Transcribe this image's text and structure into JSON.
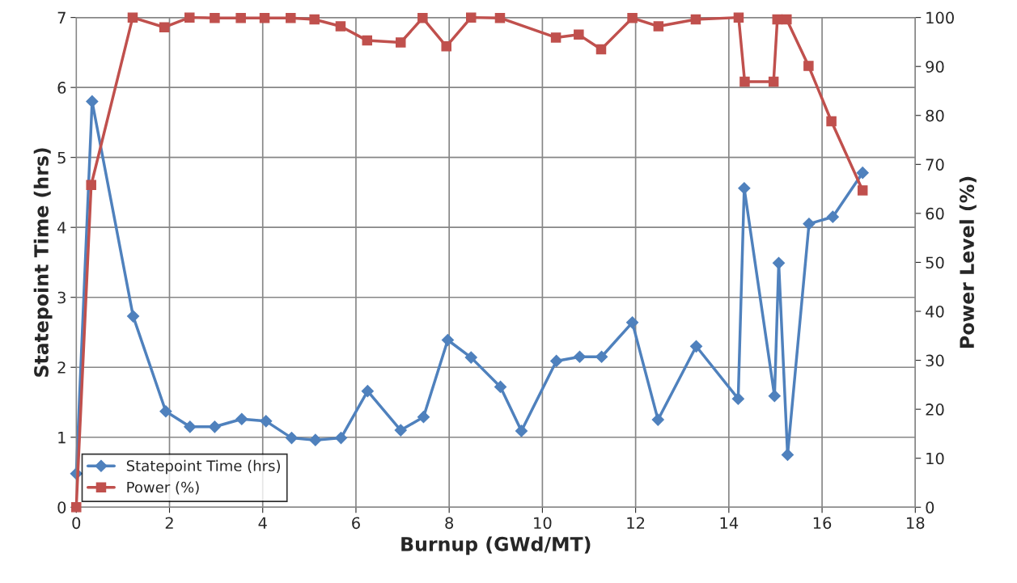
{
  "chart_data": {
    "type": "line",
    "xlabel": "Burnup (GWd/MT)",
    "ylabel": "Statepoint Time (hrs)",
    "y2label": "Power Level (%)",
    "xlim": [
      0,
      18
    ],
    "xticks": [
      0,
      2,
      4,
      6,
      8,
      10,
      12,
      14,
      16,
      18
    ],
    "ylim": [
      0,
      7
    ],
    "yticks": [
      0,
      1,
      2,
      3,
      4,
      5,
      6,
      7
    ],
    "y2lim": [
      0,
      100
    ],
    "y2ticks": [
      0,
      10,
      20,
      30,
      40,
      50,
      60,
      70,
      80,
      90,
      100
    ],
    "grid": true,
    "legend": "bottom left",
    "line_style": "solid",
    "series": [
      {
        "name": "Statepoint Time (hrs)",
        "color": "#4f81bd",
        "marker": "diamond",
        "x": [
          0,
          0.34,
          1.22,
          1.92,
          2.44,
          2.97,
          3.55,
          4.07,
          4.62,
          5.13,
          5.68,
          6.25,
          6.96,
          7.45,
          7.97,
          8.47,
          9.1,
          9.55,
          10.3,
          10.8,
          11.27,
          11.93,
          12.48,
          13.3,
          14.2,
          14.33,
          14.98,
          15.07,
          15.26,
          15.72,
          16.23,
          16.87
        ],
        "values": [
          0.48,
          5.8,
          2.73,
          1.37,
          1.15,
          1.15,
          1.26,
          1.23,
          0.99,
          0.96,
          0.99,
          1.66,
          1.1,
          1.29,
          2.39,
          2.14,
          1.72,
          1.09,
          2.09,
          2.15,
          2.15,
          2.64,
          1.25,
          2.3,
          1.55,
          4.56,
          1.59,
          3.49,
          0.75,
          4.05,
          4.15,
          4.78
        ]
      },
      {
        "name": "Power (%)",
        "color": "#c0504d",
        "marker": "square",
        "axis": "y2",
        "x": [
          0,
          0.32,
          1.21,
          1.89,
          2.43,
          2.97,
          3.53,
          4.04,
          4.6,
          5.11,
          5.67,
          6.24,
          6.96,
          7.43,
          7.94,
          8.47,
          9.09,
          10.29,
          10.78,
          11.26,
          11.93,
          12.49,
          13.29,
          14.21,
          14.34,
          14.96,
          15.04,
          15.24,
          15.71,
          16.2,
          16.87
        ],
        "values": [
          0,
          65.8,
          100,
          98,
          100,
          99.9,
          99.9,
          99.9,
          99.9,
          99.6,
          98.2,
          95.3,
          94.9,
          99.9,
          94.1,
          100,
          99.9,
          95.9,
          96.5,
          93.5,
          99.9,
          98.2,
          99.6,
          100,
          86.9,
          86.9,
          99.6,
          99.6,
          90.1,
          78.8,
          64.7
        ]
      }
    ]
  }
}
